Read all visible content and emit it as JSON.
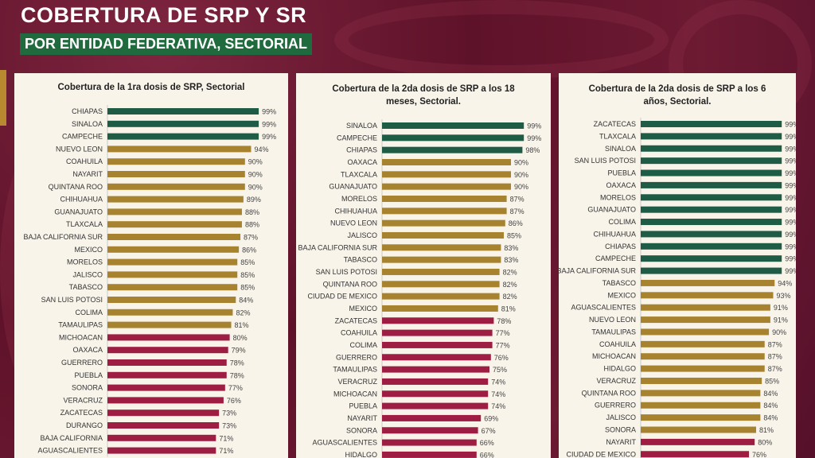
{
  "header": {
    "title": "COBERTURA DE SRP Y SR",
    "subtitle": "POR ENTIDAD FEDERATIVA, SECTORIAL"
  },
  "colors": {
    "high": "#1f5c45",
    "mid": "#a8832f",
    "low": "#9e1e43",
    "background": "#6b1a33"
  },
  "chart_data": [
    {
      "type": "bar",
      "orientation": "horizontal",
      "title": "Cobertura de la 1ra dosis de SRP, Sectorial",
      "value_suffix": "%",
      "xlim": [
        0,
        100
      ],
      "categories": [
        "CHIAPAS",
        "SINALOA",
        "CAMPECHE",
        "NUEVO LEON",
        "COAHUILA",
        "NAYARIT",
        "QUINTANA ROO",
        "CHIHUAHUA",
        "GUANAJUATO",
        "TLAXCALA",
        "BAJA CALIFORNIA SUR",
        "MEXICO",
        "MORELOS",
        "JALISCO",
        "TABASCO",
        "SAN LUIS POTOSI",
        "COLIMA",
        "TAMAULIPAS",
        "MICHOACAN",
        "OAXACA",
        "GUERRERO",
        "PUEBLA",
        "SONORA",
        "VERACRUZ",
        "ZACATECAS",
        "DURANGO",
        "BAJA CALIFORNIA",
        "AGUASCALIENTES"
      ],
      "values": [
        99,
        99,
        99,
        94,
        90,
        90,
        90,
        89,
        88,
        88,
        87,
        86,
        85,
        85,
        85,
        84,
        82,
        81,
        80,
        79,
        78,
        78,
        77,
        76,
        73,
        73,
        71,
        71
      ]
    },
    {
      "type": "bar",
      "orientation": "horizontal",
      "title": "Cobertura de la 2da dosis de SRP a los 18 meses, Sectorial.",
      "value_suffix": "%",
      "xlim": [
        0,
        100
      ],
      "categories": [
        "SINALOA",
        "CAMPECHE",
        "CHIAPAS",
        "OAXACA",
        "TLAXCALA",
        "GUANAJUATO",
        "MORELOS",
        "CHIHUAHUA",
        "NUEVO LEON",
        "JALISCO",
        "BAJA CALIFORNIA SUR",
        "TABASCO",
        "SAN LUIS POTOSI",
        "QUINTANA ROO",
        "CIUDAD DE MEXICO",
        "MEXICO",
        "ZACATECAS",
        "COAHUILA",
        "COLIMA",
        "GUERRERO",
        "TAMAULIPAS",
        "VERACRUZ",
        "MICHOACAN",
        "PUEBLA",
        "NAYARIT",
        "SONORA",
        "AGUASCALIENTES",
        "HIDALGO"
      ],
      "values": [
        99,
        99,
        98,
        90,
        90,
        90,
        87,
        87,
        86,
        85,
        83,
        83,
        82,
        82,
        82,
        81,
        78,
        77,
        77,
        76,
        75,
        74,
        74,
        74,
        69,
        67,
        66,
        66
      ]
    },
    {
      "type": "bar",
      "orientation": "horizontal",
      "title": "Cobertura de la 2da dosis de SRP a los 6 años, Sectorial.",
      "value_suffix": "%",
      "xlim": [
        0,
        100
      ],
      "categories": [
        "ZACATECAS",
        "TLAXCALA",
        "SINALOA",
        "SAN LUIS POTOSI",
        "PUEBLA",
        "OAXACA",
        "MORELOS",
        "GUANAJUATO",
        "COLIMA",
        "CHIHUAHUA",
        "CHIAPAS",
        "CAMPECHE",
        "BAJA CALIFORNIA SUR",
        "TABASCO",
        "MEXICO",
        "AGUASCALIENTES",
        "NUEVO LEON",
        "TAMAULIPAS",
        "COAHUILA",
        "MICHOACAN",
        "HIDALGO",
        "VERACRUZ",
        "QUINTANA ROO",
        "GUERRERO",
        "JALISCO",
        "SONORA",
        "NAYARIT",
        "CIUDAD DE MEXICO"
      ],
      "values": [
        99,
        99,
        99,
        99,
        99,
        99,
        99,
        99,
        99,
        99,
        99,
        99,
        99,
        94,
        93,
        91,
        91,
        90,
        87,
        87,
        87,
        85,
        84,
        84,
        84,
        81,
        80,
        76
      ]
    }
  ]
}
